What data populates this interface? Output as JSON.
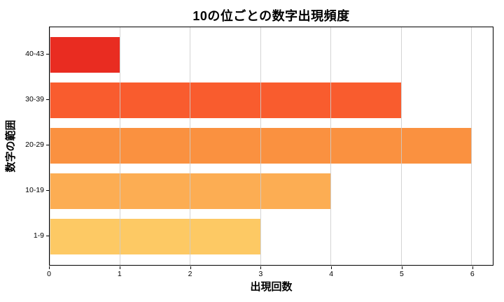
{
  "chart_data": {
    "type": "bar",
    "orientation": "horizontal",
    "title": "10の位ごとの数字出現頻度",
    "xlabel": "出現回数",
    "ylabel": "数字の範囲",
    "categories": [
      "40-43",
      "30-39",
      "20-29",
      "10-19",
      "1-9"
    ],
    "values": [
      1,
      5,
      6,
      4,
      3
    ],
    "bar_colors": [
      "#e92c21",
      "#f95c2e",
      "#fa9140",
      "#fcad53",
      "#fdc964"
    ],
    "xlim": [
      0,
      6.3
    ],
    "xticks": [
      0,
      1,
      2,
      3,
      4,
      5,
      6
    ],
    "grid": true,
    "grid_axis": "x",
    "grid_color": "#cccccc",
    "spine_color": "#000000",
    "background": "#ffffff",
    "legend": false
  }
}
